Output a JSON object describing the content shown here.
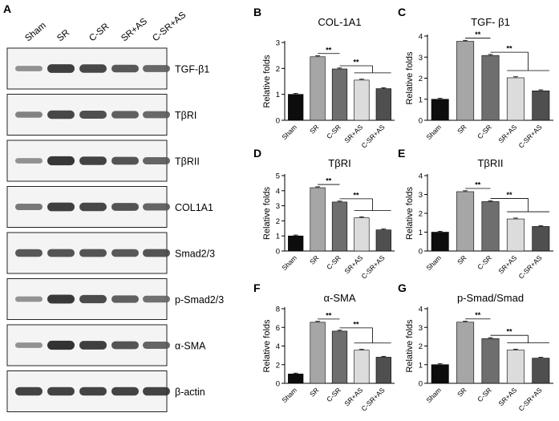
{
  "panel_a": {
    "letter": "A",
    "lanes": [
      "Sham",
      "SR",
      "C-SR",
      "SR+AS",
      "C-SR+AS"
    ],
    "blots": [
      {
        "label": "TGF-β1",
        "intensities": [
          0.35,
          0.85,
          0.8,
          0.7,
          0.6
        ]
      },
      {
        "label": "TβRI",
        "intensities": [
          0.45,
          0.8,
          0.75,
          0.65,
          0.6
        ]
      },
      {
        "label": "TβRII",
        "intensities": [
          0.35,
          0.9,
          0.82,
          0.72,
          0.62
        ]
      },
      {
        "label": "COL1A1",
        "intensities": [
          0.5,
          0.85,
          0.8,
          0.72,
          0.62
        ]
      },
      {
        "label": "Smad2/3",
        "intensities": [
          0.7,
          0.72,
          0.72,
          0.7,
          0.72
        ]
      },
      {
        "label": "p-Smad2/3",
        "intensities": [
          0.35,
          0.88,
          0.78,
          0.65,
          0.55
        ]
      },
      {
        "label": "α-SMA",
        "intensities": [
          0.35,
          0.92,
          0.85,
          0.72,
          0.62
        ]
      },
      {
        "label": "β-actin",
        "intensities": [
          0.82,
          0.82,
          0.82,
          0.82,
          0.82
        ]
      }
    ]
  },
  "chart_data": [
    {
      "letter": "B",
      "type": "bar",
      "title": "COL-1A1",
      "ylabel": "Relative folds",
      "categories": [
        "Sham",
        "SR",
        "C-SR",
        "SR+AS",
        "C-SR+AS"
      ],
      "values": [
        1,
        2.45,
        1.98,
        1.55,
        1.22
      ],
      "ylim": [
        0,
        3
      ],
      "yticks": [
        0,
        1,
        2,
        3
      ],
      "colors": [
        "#0d0d0d",
        "#a6a6a6",
        "#6e6e6e",
        "#dcdcdc",
        "#4f4f4f"
      ],
      "significance": [
        "**",
        "**"
      ]
    },
    {
      "letter": "C",
      "type": "bar",
      "title": "TGF- β1",
      "ylabel": "Relative folds",
      "categories": [
        "Sham",
        "SR",
        "C-SR",
        "SR+AS",
        "C-SR+AS"
      ],
      "values": [
        1,
        3.75,
        3.08,
        2.02,
        1.4
      ],
      "ylim": [
        0,
        4
      ],
      "yticks": [
        0,
        1,
        2,
        3,
        4
      ],
      "colors": [
        "#0d0d0d",
        "#a6a6a6",
        "#6e6e6e",
        "#dcdcdc",
        "#4f4f4f"
      ],
      "significance": [
        "**",
        "**"
      ]
    },
    {
      "letter": "D",
      "type": "bar",
      "title": "TβRI",
      "ylabel": "Relative folds",
      "categories": [
        "Sham",
        "SR",
        "C-SR",
        "SR+AS",
        "C-SR+AS"
      ],
      "values": [
        1,
        4.2,
        3.25,
        2.2,
        1.4
      ],
      "ylim": [
        0,
        5
      ],
      "yticks": [
        0,
        1,
        2,
        3,
        4,
        5
      ],
      "colors": [
        "#0d0d0d",
        "#a6a6a6",
        "#6e6e6e",
        "#dcdcdc",
        "#4f4f4f"
      ],
      "significance": [
        "**",
        "**"
      ]
    },
    {
      "letter": "E",
      "type": "bar",
      "title": "TβRII",
      "ylabel": "Relative folds",
      "categories": [
        "Sham",
        "SR",
        "C-SR",
        "SR+AS",
        "C-SR+AS"
      ],
      "values": [
        1,
        3.15,
        2.62,
        1.7,
        1.3
      ],
      "ylim": [
        0,
        4
      ],
      "yticks": [
        0,
        1,
        2,
        3,
        4
      ],
      "colors": [
        "#0d0d0d",
        "#a6a6a6",
        "#6e6e6e",
        "#dcdcdc",
        "#4f4f4f"
      ],
      "significance": [
        "**",
        "**"
      ]
    },
    {
      "letter": "F",
      "type": "bar",
      "title": "α-SMA",
      "ylabel": "Relative folds",
      "categories": [
        "Sham",
        "SR",
        "C-SR",
        "SR+AS",
        "C-SR+AS"
      ],
      "values": [
        1,
        6.55,
        5.6,
        3.55,
        2.8
      ],
      "ylim": [
        0,
        8
      ],
      "yticks": [
        0,
        2,
        4,
        6,
        8
      ],
      "colors": [
        "#0d0d0d",
        "#a6a6a6",
        "#6e6e6e",
        "#dcdcdc",
        "#4f4f4f"
      ],
      "significance": [
        "**",
        "**"
      ]
    },
    {
      "letter": "G",
      "type": "bar",
      "title": "p-Smad/Smad",
      "ylabel": "Relative folds",
      "categories": [
        "Sham",
        "SR",
        "C-SR",
        "SR+AS",
        "C-SR+AS"
      ],
      "values": [
        1,
        3.28,
        2.4,
        1.78,
        1.35
      ],
      "ylim": [
        0,
        4
      ],
      "yticks": [
        0,
        1,
        2,
        3,
        4
      ],
      "colors": [
        "#0d0d0d",
        "#a6a6a6",
        "#6e6e6e",
        "#dcdcdc",
        "#4f4f4f"
      ],
      "significance": [
        "**",
        "**"
      ]
    }
  ]
}
